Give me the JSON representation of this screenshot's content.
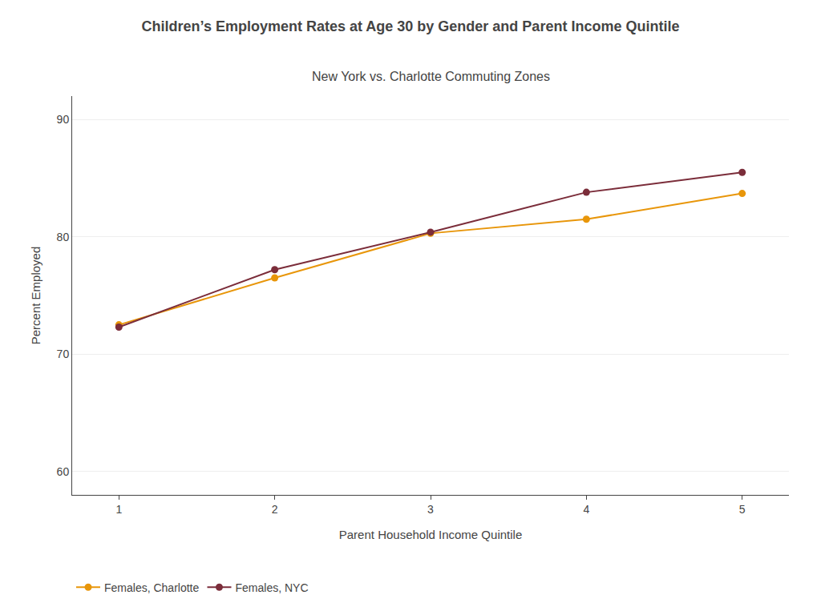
{
  "chart_data": {
    "type": "line",
    "title": "Children’s Employment Rates at Age 30 by Gender and Parent Income Quintile",
    "subtitle": "New York vs. Charlotte Commuting Zones",
    "xlabel": "Parent Household Income Quintile",
    "ylabel": "Percent Employed",
    "x": [
      1,
      2,
      3,
      4,
      5
    ],
    "series": [
      {
        "name": "Females, Charlotte",
        "color": "#E8960A",
        "values": [
          72.5,
          76.5,
          80.3,
          81.5,
          83.7
        ]
      },
      {
        "name": "Females, NYC",
        "color": "#7B2D3A",
        "values": [
          72.3,
          77.2,
          80.4,
          83.8,
          85.5
        ]
      }
    ],
    "xlim": [
      0.7,
      5.3
    ],
    "xticks": [
      1,
      2,
      3,
      4,
      5
    ],
    "ylim": [
      58,
      92
    ],
    "yticks": [
      60,
      70,
      80,
      90
    ],
    "grid": true,
    "legend": "bottom left",
    "marker": "circle",
    "line_style": "solid"
  }
}
